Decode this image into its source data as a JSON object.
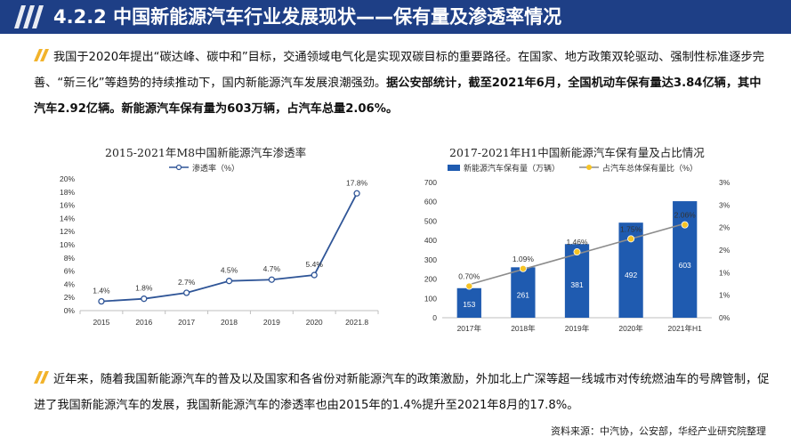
{
  "header": {
    "title": "4.2.2 中国新能源汽车行业发展现状——保有量及渗透率情况"
  },
  "paragraph1": {
    "normal": "我国于2020年提出“碳达峰、碳中和”目标，交通领域电气化是实现双碳目标的重要路径。在国家、地方政策双轮驱动、强制性标准逐步完善、“新三化”等趋势的持续推动下，国内新能源汽车发展浪潮强劲。",
    "bold": "据公安部统计，截至2021年6月，全国机动车保有量达3.84亿辆，其中汽车2.92亿辆。新能源汽车保有量为603万辆，占汽车总量2.06%。"
  },
  "paragraph2": {
    "text": "近年来，随着我国新能源汽车的普及以及国家和各省份对新能源汽车的政策激励，外加北上广深等超一线城市对传统燃油车的号牌管制，促进了我国新能源汽车的发展，我国新能源汽车的渗透率也由2015年的1.4%提升至2021年8月的17.8%。"
  },
  "source": "资料来源：中汽协，公安部，华经产业研究院整理",
  "colors": {
    "header_bg": "#1e3f86",
    "accent_yellow": "#f2b32b",
    "line_blue": "#2f5597",
    "bar_blue": "#1f5bb0",
    "dot_yellow": "#f6c325",
    "trend_gray": "#8c8c8c"
  },
  "chart_data": [
    {
      "type": "line",
      "title": "2015-2021年M8中国新能源汽车渗透率",
      "legend": "渗透率（%）",
      "legend_position": "top",
      "categories": [
        "2015",
        "2016",
        "2017",
        "2018",
        "2019",
        "2020",
        "2021.8"
      ],
      "values": [
        1.4,
        1.8,
        2.7,
        4.5,
        4.7,
        5.4,
        17.8
      ],
      "data_labels": [
        "1.4%",
        "1.8%",
        "2.7%",
        "4.5%",
        "4.7%",
        "5.4%",
        "17.8%"
      ],
      "ylim": [
        0,
        20
      ],
      "yticks": [
        "0%",
        "2%",
        "4%",
        "6%",
        "8%",
        "10%",
        "12%",
        "14%",
        "16%",
        "18%",
        "20%"
      ],
      "grid": false
    },
    {
      "type": "bar",
      "title": "2017-2021年H1中国新能源汽车保有量及占比情况",
      "legend_position": "top",
      "categories": [
        "2017年",
        "2018年",
        "2019年",
        "2020年",
        "2021年H1"
      ],
      "series": [
        {
          "name": "新能源汽车保有量（万辆）",
          "type": "bar",
          "axis": "left",
          "values": [
            153,
            261,
            381,
            492,
            603
          ],
          "data_labels": [
            "153",
            "261",
            "381",
            "492",
            "603"
          ]
        },
        {
          "name": "占汽车总体保有量比（%）",
          "type": "line",
          "axis": "right",
          "values": [
            0.7,
            1.09,
            1.46,
            1.75,
            2.06
          ],
          "data_labels": [
            "0.70%",
            "1.09%",
            "1.46%",
            "1.75%",
            "2.06%"
          ]
        }
      ],
      "ylim_left": [
        0,
        700
      ],
      "yticks_left": [
        "0",
        "100",
        "200",
        "300",
        "400",
        "500",
        "600",
        "700"
      ],
      "ylim_right": [
        0,
        3
      ],
      "yticks_right": [
        "0%",
        "1%",
        "1%",
        "2%",
        "2%",
        "3%",
        "3%"
      ],
      "trendline": true,
      "grid": false
    }
  ]
}
